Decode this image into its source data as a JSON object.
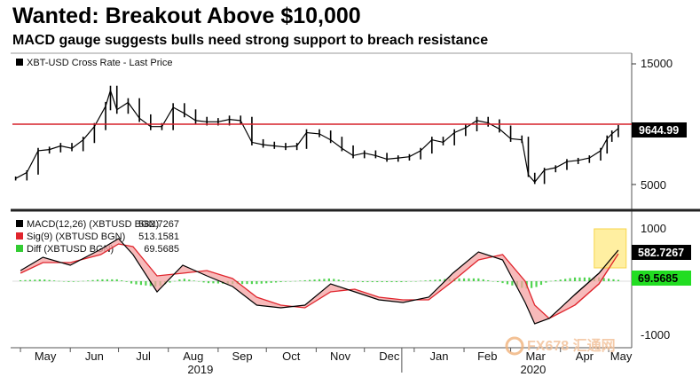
{
  "title": "Wanted: Breakout Above $10,000",
  "subtitle": "MACD gauge suggests bulls need strong support to breach resistance",
  "watermark": "FX678 汇通网",
  "colors": {
    "price": "#000000",
    "resistance": "#d6202a",
    "macd": "#000000",
    "signal": "#e0252d",
    "diff": "#33cc33",
    "highlight": "#ffe97a"
  },
  "chart_data": [
    {
      "type": "line",
      "panel": "price",
      "legend": [
        "XBT-USD Cross Rate - Last Price"
      ],
      "last_value_label": "9644.99",
      "resistance_level": 10000,
      "y_ticks": [
        "15000",
        "5000"
      ],
      "ylim": [
        3500,
        15500
      ],
      "series": [
        {
          "name": "XBT-USD Cross Rate - Last Price",
          "x": [
            "2019-04-28",
            "2019-05-05",
            "2019-05-12",
            "2019-05-19",
            "2019-05-26",
            "2019-06-02",
            "2019-06-09",
            "2019-06-16",
            "2019-06-23",
            "2019-06-26",
            "2019-06-30",
            "2019-07-07",
            "2019-07-14",
            "2019-07-21",
            "2019-07-28",
            "2019-08-04",
            "2019-08-11",
            "2019-08-18",
            "2019-08-25",
            "2019-09-01",
            "2019-09-08",
            "2019-09-15",
            "2019-09-22",
            "2019-09-29",
            "2019-10-06",
            "2019-10-13",
            "2019-10-20",
            "2019-10-26",
            "2019-11-03",
            "2019-11-10",
            "2019-11-17",
            "2019-11-24",
            "2019-12-01",
            "2019-12-08",
            "2019-12-15",
            "2019-12-22",
            "2019-12-29",
            "2020-01-05",
            "2020-01-12",
            "2020-01-19",
            "2020-01-26",
            "2020-02-02",
            "2020-02-09",
            "2020-02-16",
            "2020-02-23",
            "2020-03-01",
            "2020-03-08",
            "2020-03-12",
            "2020-03-16",
            "2020-03-22",
            "2020-03-29",
            "2020-04-05",
            "2020-04-12",
            "2020-04-19",
            "2020-04-26",
            "2020-04-30",
            "2020-05-03",
            "2020-05-07"
          ],
          "values": [
            5500,
            6000,
            7800,
            7900,
            8200,
            8000,
            8700,
            9800,
            11500,
            12800,
            11200,
            11800,
            10500,
            9800,
            9800,
            11400,
            10900,
            10300,
            10200,
            10200,
            10400,
            10300,
            8500,
            8300,
            8200,
            8100,
            8200,
            9300,
            9200,
            8700,
            8000,
            7400,
            7600,
            7400,
            7100,
            7200,
            7300,
            7800,
            8700,
            8500,
            9300,
            9700,
            10300,
            10100,
            9600,
            8800,
            8700,
            5800,
            5200,
            6200,
            6400,
            6900,
            7000,
            7200,
            7800,
            8800,
            9200,
            9645
          ]
        }
      ]
    },
    {
      "type": "line",
      "panel": "macd",
      "legend": [
        "MACD(12,26) (XBTUSD BGN)",
        "Sig(9) (XBTUSD BGN)",
        "Diff (XBTUSD BGN)"
      ],
      "legend_values": [
        "582.7267",
        "513.1581",
        "69.5685"
      ],
      "last_value_labels": [
        "582.7267",
        "69.5685"
      ],
      "y_ticks": [
        "1000",
        "-1000"
      ],
      "ylim": [
        -1100,
        1100
      ],
      "x_labels": [
        "May",
        "Jun",
        "Jul",
        "Aug",
        "Sep",
        "Oct",
        "Nov",
        "Dec",
        "Jan",
        "Feb",
        "Mar",
        "Apr",
        "May"
      ],
      "year_labels": [
        "2019",
        "2020"
      ],
      "series": [
        {
          "name": "MACD(12,26) (XBTUSD BGN)",
          "x": [
            "2019-05-01",
            "2019-05-15",
            "2019-06-01",
            "2019-06-20",
            "2019-07-01",
            "2019-07-10",
            "2019-07-25",
            "2019-08-10",
            "2019-08-25",
            "2019-09-10",
            "2019-09-25",
            "2019-10-10",
            "2019-10-25",
            "2019-11-10",
            "2019-11-25",
            "2019-12-10",
            "2019-12-25",
            "2020-01-10",
            "2020-01-25",
            "2020-02-10",
            "2020-02-25",
            "2020-03-10",
            "2020-03-16",
            "2020-03-25",
            "2020-04-10",
            "2020-04-25",
            "2020-05-07"
          ],
          "values": [
            200,
            450,
            300,
            600,
            800,
            500,
            -200,
            300,
            100,
            -100,
            -450,
            -500,
            -450,
            -50,
            -200,
            -350,
            -400,
            -300,
            150,
            550,
            400,
            -400,
            -800,
            -700,
            -250,
            150,
            583
          ]
        },
        {
          "name": "Sig(9) (XBTUSD BGN)",
          "x": [
            "2019-05-01",
            "2019-05-15",
            "2019-06-01",
            "2019-06-20",
            "2019-07-01",
            "2019-07-10",
            "2019-07-25",
            "2019-08-10",
            "2019-08-25",
            "2019-09-10",
            "2019-09-25",
            "2019-10-10",
            "2019-10-25",
            "2019-11-10",
            "2019-11-25",
            "2019-12-10",
            "2019-12-25",
            "2020-01-10",
            "2020-01-25",
            "2020-02-10",
            "2020-02-25",
            "2020-03-10",
            "2020-03-16",
            "2020-03-25",
            "2020-04-10",
            "2020-04-25",
            "2020-05-07"
          ],
          "values": [
            150,
            350,
            350,
            500,
            700,
            650,
            100,
            150,
            200,
            50,
            -300,
            -450,
            -500,
            -200,
            -150,
            -300,
            -350,
            -350,
            0,
            400,
            500,
            0,
            -450,
            -700,
            -450,
            -50,
            513
          ]
        },
        {
          "name": "Diff (XBTUSD BGN)",
          "x": [
            "2019-05-01",
            "2019-05-15",
            "2019-06-01",
            "2019-06-20",
            "2019-07-01",
            "2019-07-10",
            "2019-07-25",
            "2019-08-10",
            "2019-08-25",
            "2019-09-10",
            "2019-09-25",
            "2019-10-10",
            "2019-10-25",
            "2019-11-10",
            "2019-11-25",
            "2019-12-10",
            "2019-12-25",
            "2020-01-10",
            "2020-01-25",
            "2020-02-10",
            "2020-02-25",
            "2020-03-10",
            "2020-03-16",
            "2020-03-25",
            "2020-04-10",
            "2020-04-25",
            "2020-05-07"
          ],
          "values": [
            50,
            100,
            -50,
            100,
            100,
            -150,
            -300,
            150,
            -100,
            -150,
            -150,
            -50,
            50,
            150,
            -50,
            -50,
            -50,
            50,
            150,
            150,
            -100,
            -400,
            -350,
            0,
            200,
            200,
            70
          ]
        }
      ]
    }
  ]
}
